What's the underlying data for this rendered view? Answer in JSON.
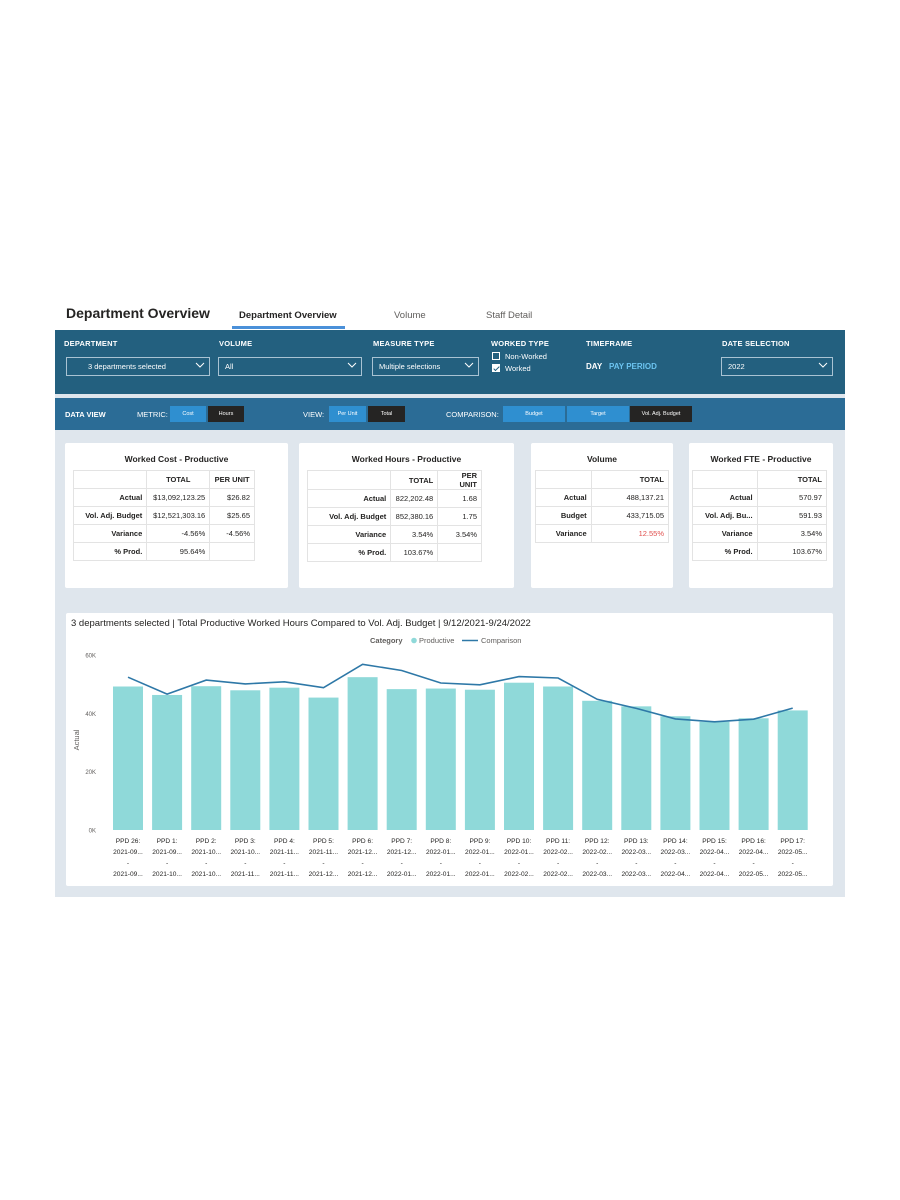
{
  "header": {
    "title": "Department Overview",
    "tabs": [
      {
        "label": "Department Overview",
        "active": true
      },
      {
        "label": "Volume",
        "active": false
      },
      {
        "label": "Staff Detail",
        "active": false
      }
    ]
  },
  "filters": {
    "department": {
      "label": "DEPARTMENT",
      "value": "3 departments selected"
    },
    "volume": {
      "label": "VOLUME",
      "value": "All"
    },
    "measure_type": {
      "label": "MEASURE TYPE",
      "value": "Multiple selections"
    },
    "worked_type": {
      "label": "WORKED TYPE",
      "options": [
        {
          "label": "Non-Worked",
          "checked": false
        },
        {
          "label": "Worked",
          "checked": true
        }
      ]
    },
    "timeframe": {
      "label": "TIMEFRAME",
      "options": [
        "DAY",
        "PAY PERIOD"
      ],
      "selected": "PAY PERIOD"
    },
    "date_selection": {
      "label": "DATE SELECTION",
      "value": "2022"
    }
  },
  "data_view": {
    "label": "DATA VIEW",
    "metric_label": "METRIC:",
    "metric_options": [
      {
        "label": "Cost",
        "active": true
      },
      {
        "label": "Hours",
        "active": false
      }
    ],
    "view_label": "VIEW:",
    "view_options": [
      {
        "label": "Per Unit",
        "active": true
      },
      {
        "label": "Total",
        "active": false
      }
    ],
    "comparison_label": "COMPARISON:",
    "comparison_options": [
      {
        "label": "Budget",
        "active": true
      },
      {
        "label": "Target",
        "active": true
      },
      {
        "label": "Vol. Adj. Budget",
        "active": false
      }
    ]
  },
  "cards": {
    "worked_cost": {
      "title": "Worked Cost - Productive",
      "headers": [
        "TOTAL",
        "PER UNIT"
      ],
      "rows": [
        {
          "label": "Actual",
          "total": "$13,092,123.25",
          "per_unit": "$26.82"
        },
        {
          "label": "Vol. Adj. Budget",
          "total": "$12,521,303.16",
          "per_unit": "$25.65"
        },
        {
          "label": "Variance",
          "total": "-4.56%",
          "per_unit": "-4.56%"
        },
        {
          "label": "% Prod.",
          "total": "95.64%",
          "per_unit": ""
        }
      ]
    },
    "worked_hours": {
      "title": "Worked Hours - Productive",
      "headers": [
        "TOTAL",
        "PER UNIT"
      ],
      "rows": [
        {
          "label": "Actual",
          "total": "822,202.48",
          "per_unit": "1.68"
        },
        {
          "label": "Vol. Adj. Budget",
          "total": "852,380.16",
          "per_unit": "1.75"
        },
        {
          "label": "Variance",
          "total": "3.54%",
          "per_unit": "3.54%"
        },
        {
          "label": "% Prod.",
          "total": "103.67%",
          "per_unit": ""
        }
      ]
    },
    "volume": {
      "title": "Volume",
      "headers": [
        "TOTAL"
      ],
      "rows": [
        {
          "label": "Actual",
          "total": "488,137.21"
        },
        {
          "label": "Budget",
          "total": "433,715.05"
        },
        {
          "label": "Variance",
          "total": "12.55%"
        }
      ]
    },
    "worked_fte": {
      "title": "Worked FTE - Productive",
      "headers": [
        "TOTAL"
      ],
      "rows": [
        {
          "label": "Actual",
          "total": "570.97"
        },
        {
          "label": "Vol. Adj. Bu...",
          "total": "591.93"
        },
        {
          "label": "Variance",
          "total": "3.54%"
        },
        {
          "label": "% Prod.",
          "total": "103.67%"
        }
      ]
    }
  },
  "colors": {
    "filter_bar": "#23607f",
    "data_view_bar": "#2b6c96",
    "accent_blue": "#2f8fd0",
    "bar_fill": "#8fd9d9",
    "line": "#2e78a7",
    "negative": "#e0504e",
    "timeframe_active": "#6cc4f0"
  },
  "chart_data": {
    "type": "bar",
    "title": "3 departments selected | Total Productive Worked Hours Compared to Vol. Adj. Budget | 9/12/2021-9/24/2022",
    "legend_title": "Category",
    "legend_position": "top-center",
    "ylabel": "Actual",
    "xlabel": "",
    "ylim": [
      0,
      60000
    ],
    "y_ticks": [
      "0K",
      "20K",
      "40K",
      "60K"
    ],
    "grid": false,
    "categories": [
      {
        "l1": "PPD 26:",
        "l2": "2021-09...",
        "l3": "-",
        "l4": "2021-09..."
      },
      {
        "l1": "PPD 1:",
        "l2": "2021-09...",
        "l3": "-",
        "l4": "2021-10..."
      },
      {
        "l1": "PPD 2:",
        "l2": "2021-10...",
        "l3": "-",
        "l4": "2021-10..."
      },
      {
        "l1": "PPD 3:",
        "l2": "2021-10...",
        "l3": "-",
        "l4": "2021-11..."
      },
      {
        "l1": "PPD 4:",
        "l2": "2021-11...",
        "l3": "-",
        "l4": "2021-11..."
      },
      {
        "l1": "PPD 5:",
        "l2": "2021-11...",
        "l3": "-",
        "l4": "2021-12..."
      },
      {
        "l1": "PPD 6:",
        "l2": "2021-12...",
        "l3": "-",
        "l4": "2021-12..."
      },
      {
        "l1": "PPD 7:",
        "l2": "2021-12...",
        "l3": "-",
        "l4": "2022-01..."
      },
      {
        "l1": "PPD 8:",
        "l2": "2022-01...",
        "l3": "-",
        "l4": "2022-01..."
      },
      {
        "l1": "PPD 9:",
        "l2": "2022-01...",
        "l3": "-",
        "l4": "2022-01..."
      },
      {
        "l1": "PPD 10:",
        "l2": "2022-01...",
        "l3": "-",
        "l4": "2022-02..."
      },
      {
        "l1": "PPD 11:",
        "l2": "2022-02...",
        "l3": "-",
        "l4": "2022-02..."
      },
      {
        "l1": "PPD 12:",
        "l2": "2022-02...",
        "l3": "-",
        "l4": "2022-03..."
      },
      {
        "l1": "PPD 13:",
        "l2": "2022-03...",
        "l3": "-",
        "l4": "2022-03..."
      },
      {
        "l1": "PPD 14:",
        "l2": "2022-03...",
        "l3": "-",
        "l4": "2022-04..."
      },
      {
        "l1": "PPD 15:",
        "l2": "2022-04...",
        "l3": "-",
        "l4": "2022-04..."
      },
      {
        "l1": "PPD 16:",
        "l2": "2022-04...",
        "l3": "-",
        "l4": "2022-05..."
      },
      {
        "l1": "PPD 17:",
        "l2": "2022-05...",
        "l3": "-",
        "l4": "2022-05..."
      }
    ],
    "series": [
      {
        "name": "Productive",
        "type": "bar",
        "values": [
          49200,
          46300,
          49300,
          47900,
          48800,
          45400,
          52400,
          48300,
          48500,
          48100,
          50500,
          49200,
          44300,
          42400,
          39000,
          37100,
          38300,
          41000
        ]
      },
      {
        "name": "Comparison",
        "type": "line",
        "values": [
          52400,
          46600,
          51400,
          50100,
          50800,
          48800,
          56800,
          54700,
          50400,
          49800,
          52600,
          52100,
          44800,
          41700,
          38100,
          37100,
          38000,
          41800
        ]
      }
    ]
  }
}
